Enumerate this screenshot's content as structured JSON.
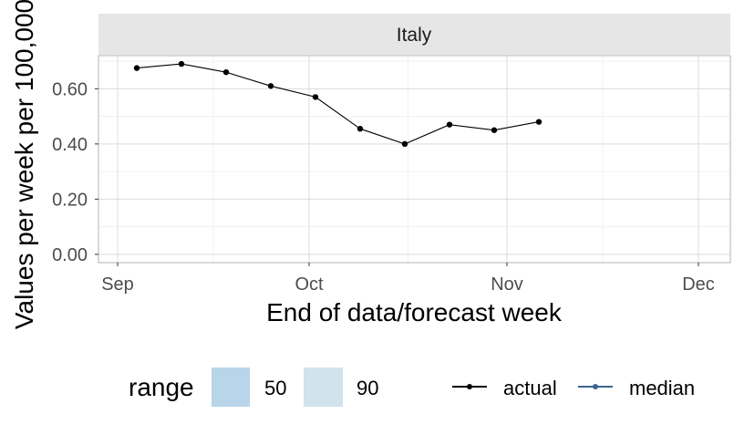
{
  "chart_data": {
    "type": "line",
    "panel_title": "Italy",
    "xlabel": "End of data/forecast week",
    "ylabel": "Values per week per 100,000",
    "x_ticks": [
      "Sep",
      "Oct",
      "Nov",
      "Dec"
    ],
    "y_ticks": [
      "0.00",
      "0.20",
      "0.40",
      "0.60"
    ],
    "ylim": [
      -0.03,
      0.72
    ],
    "xlim": [
      "2021-08-29",
      "2021-12-06"
    ],
    "grid": true,
    "series": [
      {
        "name": "actual",
        "color": "#000000",
        "points": [
          {
            "x": "2021-09-04",
            "y": 0.675
          },
          {
            "x": "2021-09-11",
            "y": 0.69
          },
          {
            "x": "2021-09-18",
            "y": 0.66
          },
          {
            "x": "2021-09-25",
            "y": 0.61
          },
          {
            "x": "2021-10-02",
            "y": 0.57
          },
          {
            "x": "2021-10-09",
            "y": 0.455
          },
          {
            "x": "2021-10-16",
            "y": 0.4
          },
          {
            "x": "2021-10-23",
            "y": 0.47
          },
          {
            "x": "2021-10-30",
            "y": 0.45
          },
          {
            "x": "2021-11-06",
            "y": 0.48
          }
        ]
      }
    ],
    "legend": {
      "position": "bottom",
      "range_title": "range",
      "range_items": [
        {
          "label": "50",
          "color": "#b8d5ea"
        },
        {
          "label": "90",
          "color": "#d1e3ec"
        }
      ],
      "line_items": [
        {
          "label": "actual",
          "color": "#000000"
        },
        {
          "label": "median",
          "color": "#3c6591"
        }
      ]
    },
    "colors": {
      "panel_border": "#b3b3b3",
      "strip_fill": "#e6e6e6",
      "grid_major": "#dcdcdc",
      "grid_minor": "#f0f0f0"
    }
  }
}
